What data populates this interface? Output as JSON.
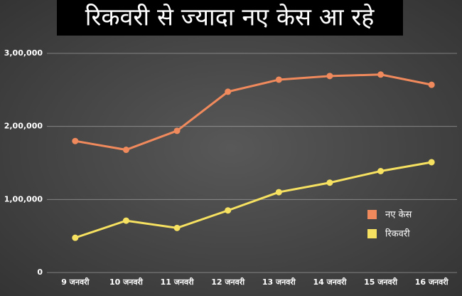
{
  "chart_data": {
    "type": "line",
    "title": "रिकवरी से ज्यादा नए केस आ रहे",
    "categories": [
      "9 जनवरी",
      "10 जनवरी",
      "11 जनवरी",
      "12 जनवरी",
      "13 जनवरी",
      "14 जनवरी",
      "15 जनवरी",
      "16 जनवरी"
    ],
    "series": [
      {
        "name": "नए केस",
        "color": "#f08a5d",
        "values": [
          180000,
          168000,
          194000,
          247500,
          264000,
          269000,
          271000,
          257000
        ]
      },
      {
        "name": "रिकवरी",
        "color": "#f7e160",
        "values": [
          47600,
          71000,
          61000,
          85000,
          110000,
          123000,
          138800,
          151000
        ]
      }
    ],
    "ylim": [
      0,
      300000
    ],
    "yticks": [
      0,
      {
        "value": 100000,
        "label": "1,00,000"
      },
      {
        "value": 200000,
        "label": "2,00,000"
      },
      {
        "value": 300000,
        "label": "3,00,000"
      }
    ],
    "grid": true,
    "legend": "right"
  }
}
